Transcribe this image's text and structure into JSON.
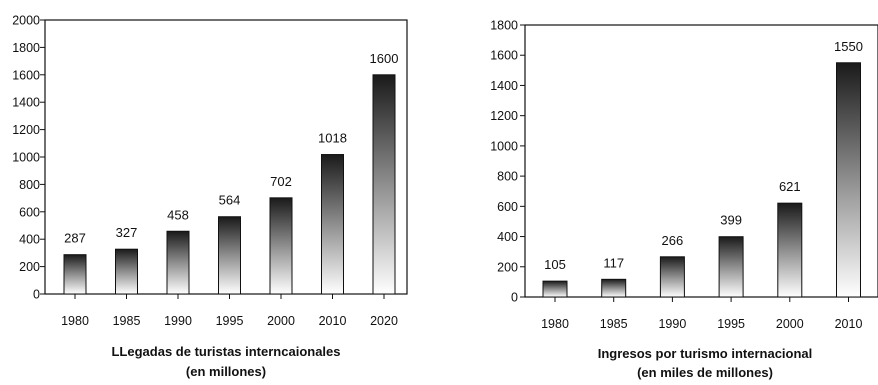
{
  "chart_data": [
    {
      "type": "bar",
      "categories": [
        "1980",
        "1985",
        "1990",
        "1995",
        "2000",
        "2010",
        "2020"
      ],
      "values": [
        287,
        327,
        458,
        564,
        702,
        1018,
        1600
      ],
      "data_labels": [
        "287",
        "327",
        "458",
        "564",
        "702",
        "1018",
        "1600"
      ],
      "yticks": [
        "0",
        "200",
        "400",
        "600",
        "800",
        "1000",
        "1200",
        "1400",
        "1600",
        "1800",
        "2000"
      ],
      "ylim": [
        0,
        2000
      ],
      "xlabel": "LLegadas de turistas interncaionales",
      "xlabel_sub": "(en millones)",
      "grid": false,
      "bar_fill": "gradient black-to-white"
    },
    {
      "type": "bar",
      "categories": [
        "1980",
        "1985",
        "1990",
        "1995",
        "2000",
        "2010"
      ],
      "values": [
        105,
        117,
        266,
        399,
        621,
        1550
      ],
      "data_labels": [
        "105",
        "117",
        "266",
        "399",
        "621",
        "1550"
      ],
      "yticks": [
        "0",
        "200",
        "400",
        "600",
        "800",
        "1000",
        "1200",
        "1400",
        "1600",
        "1800"
      ],
      "ylim": [
        0,
        1800
      ],
      "xlabel": "Ingresos por turismo internacional",
      "xlabel_sub": "(en miles de millones)",
      "grid": false,
      "bar_fill": "gradient black-to-white"
    }
  ]
}
